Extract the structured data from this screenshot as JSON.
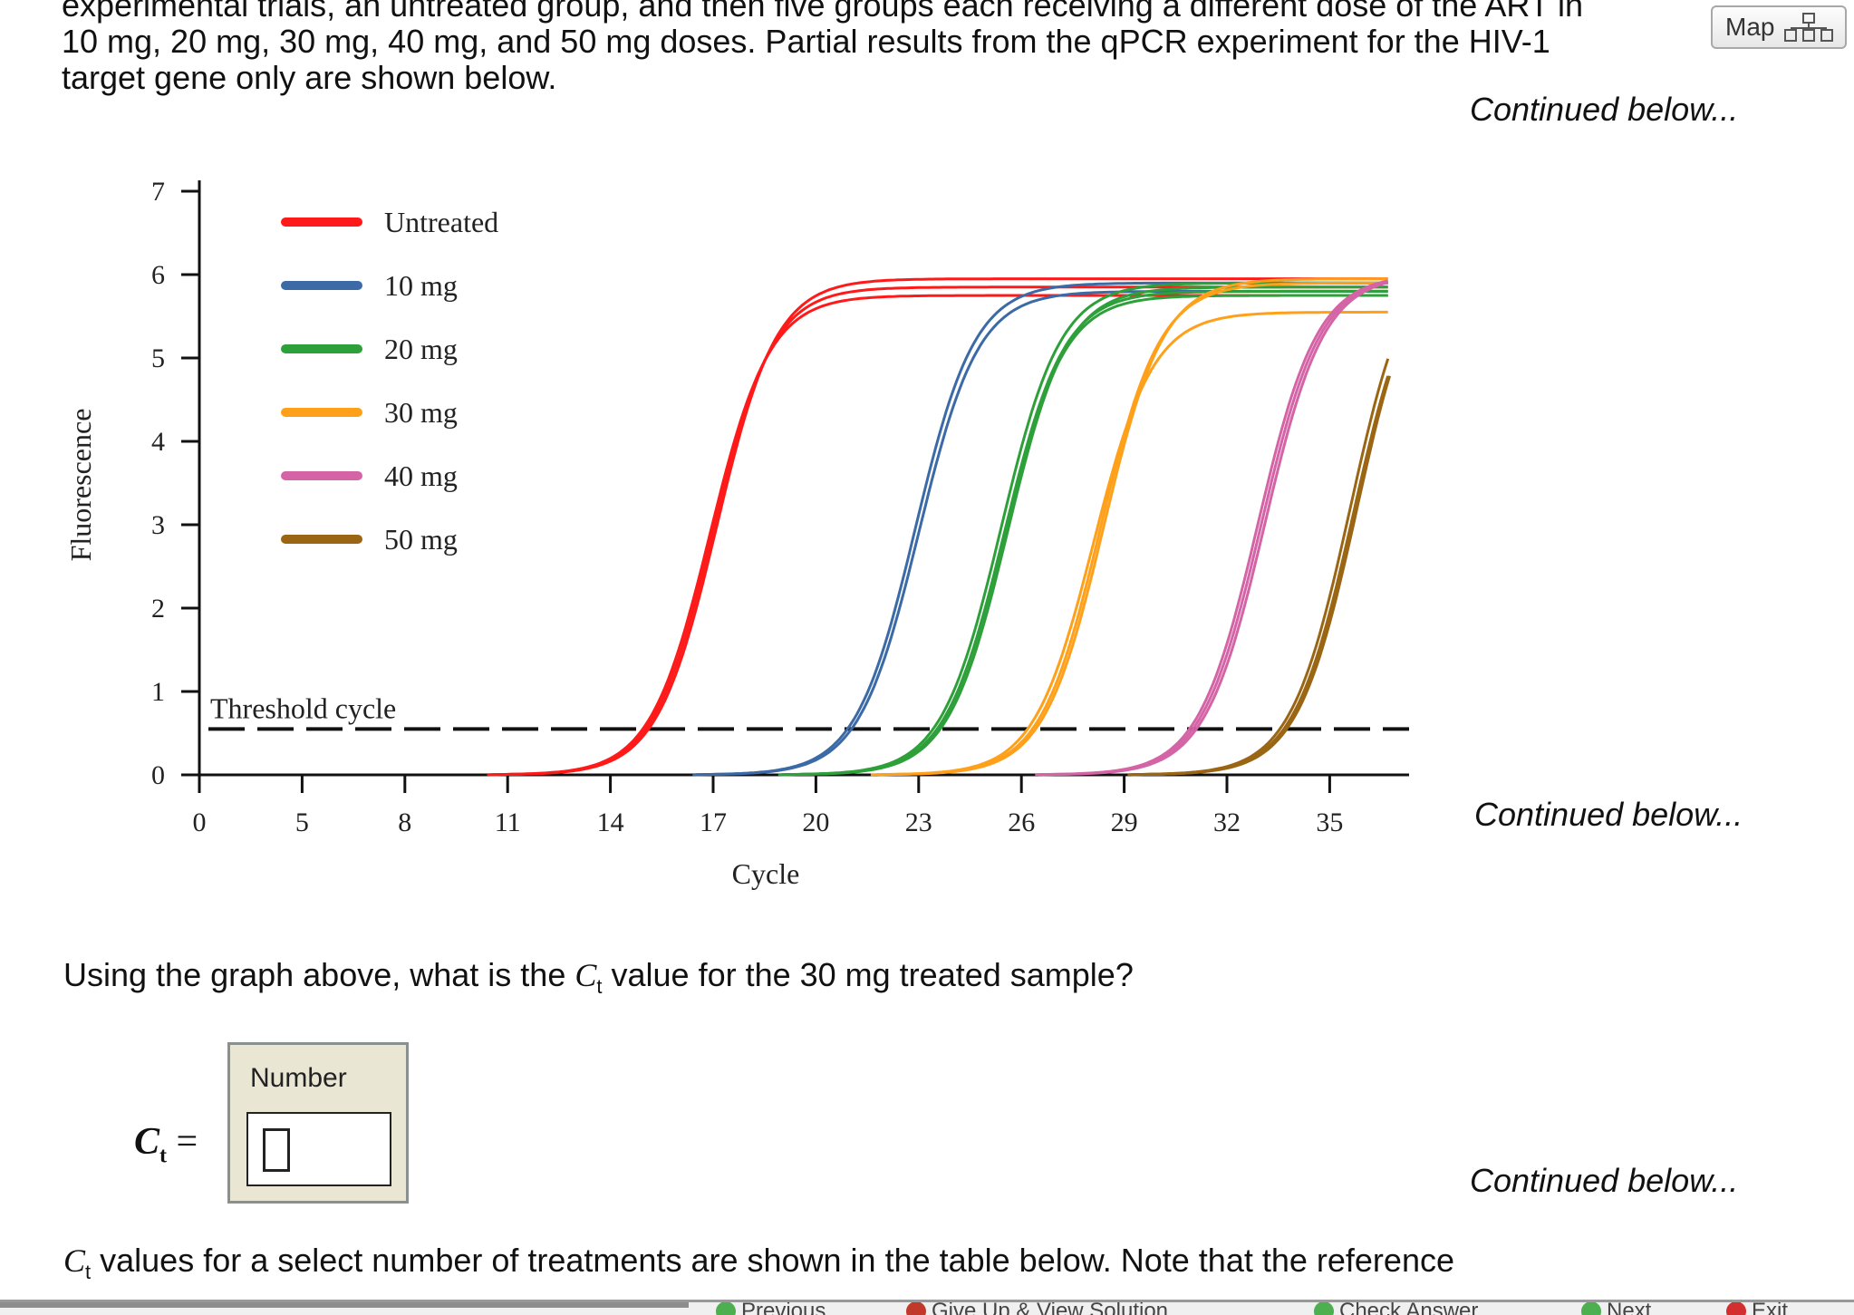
{
  "intro": {
    "line0": "experimental trials, an untreated group, and then five groups each receiving a different dose of the ART in",
    "line1": "10 mg, 20 mg, 30 mg, 40 mg, and 50 mg doses. Partial results from the qPCR experiment for the HIV-1",
    "line2": "target gene only are shown below."
  },
  "map_button": {
    "label": "Map",
    "icon": "hierarchy-map-icon"
  },
  "continued_label": "Continued below...",
  "chart_data": {
    "type": "line",
    "xlabel": "Cycle",
    "ylabel": "Fluorescence",
    "x_ticks": [
      "0",
      "5",
      "8",
      "11",
      "14",
      "17",
      "20",
      "23",
      "26",
      "29",
      "32",
      "35"
    ],
    "y_ticks": [
      "0",
      "1",
      "2",
      "3",
      "4",
      "5",
      "6",
      "7"
    ],
    "ylim": [
      0,
      7
    ],
    "threshold": {
      "label": "Threshold cycle",
      "y": 0.55
    },
    "legend_position": "top-left",
    "series": [
      {
        "name": "Untreated",
        "color": "#ff1a1a",
        "curves": [
          {
            "mid": 17.0,
            "plateau": 5.85
          },
          {
            "mid": 16.9,
            "plateau": 5.75
          },
          {
            "mid": 17.1,
            "plateau": 5.95
          }
        ]
      },
      {
        "name": "10 mg",
        "color": "#3b6aa6",
        "curves": [
          {
            "mid": 22.9,
            "plateau": 5.9
          },
          {
            "mid": 23.0,
            "plateau": 5.8
          }
        ]
      },
      {
        "name": "20 mg",
        "color": "#2ea03a",
        "curves": [
          {
            "mid": 25.4,
            "plateau": 5.9
          },
          {
            "mid": 25.5,
            "plateau": 5.8
          },
          {
            "mid": 25.6,
            "plateau": 5.85
          },
          {
            "mid": 25.5,
            "plateau": 5.75
          }
        ]
      },
      {
        "name": "30 mg",
        "color": "#ffa01a",
        "curves": [
          {
            "mid": 28.1,
            "plateau": 5.55
          },
          {
            "mid": 28.3,
            "plateau": 5.9
          },
          {
            "mid": 28.4,
            "plateau": 5.95
          }
        ]
      },
      {
        "name": "40 mg",
        "color": "#d464a6",
        "curves": [
          {
            "mid": 32.9,
            "plateau": 6.0
          },
          {
            "mid": 33.0,
            "plateau": 6.0
          },
          {
            "mid": 33.1,
            "plateau": 6.0
          }
        ]
      },
      {
        "name": "50 mg",
        "color": "#9a6614",
        "curves": [
          {
            "mid": 35.6,
            "plateau": 6.4
          },
          {
            "mid": 35.7,
            "plateau": 6.3
          },
          {
            "mid": 35.8,
            "plateau": 6.4
          },
          {
            "mid": 35.75,
            "plateau": 6.3
          }
        ]
      }
    ]
  },
  "question": {
    "prefix": "Using the graph above, what is the ",
    "ct_symbol": "C",
    "ct_sub": "t",
    "suffix": " value for the 30 mg treated sample?"
  },
  "answer": {
    "box_label": "Number",
    "lhs_symbol": "C",
    "lhs_sub": "t",
    "equals": " =",
    "value": ""
  },
  "bottom": {
    "ct_symbol": "C",
    "ct_sub": "t",
    "text": " values for a select number of treatments are shown in the table below. Note that the reference"
  },
  "toolbar": {
    "previous": "Previous",
    "give_up": "Give Up & View Solution",
    "check": "Check Answer",
    "next": "Next",
    "exit": "Exit"
  }
}
